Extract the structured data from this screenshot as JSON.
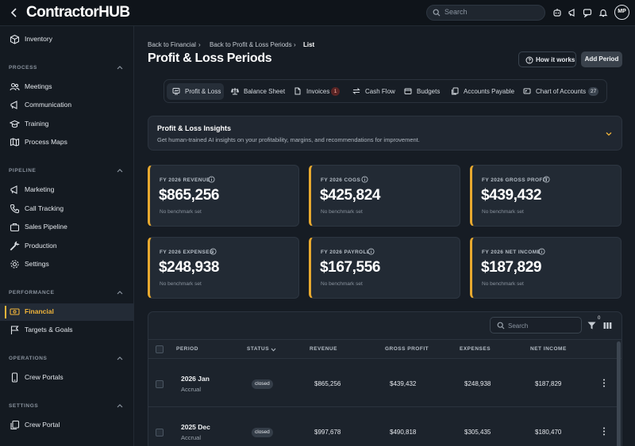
{
  "app": {
    "logo": "ContractorHUB"
  },
  "topbar": {
    "search_placeholder": "Search",
    "avatar_initials": "MP"
  },
  "sidebar": {
    "top_item": "Inventory",
    "sections": [
      {
        "title": "PROCESS",
        "items": [
          "Meetings",
          "Communication",
          "Training",
          "Process Maps"
        ]
      },
      {
        "title": "PIPELINE",
        "items": [
          "Marketing",
          "Call Tracking",
          "Sales Pipeline",
          "Production",
          "Settings"
        ]
      },
      {
        "title": "PERFORMANCE",
        "items": [
          "Financial",
          "Targets & Goals"
        ]
      },
      {
        "title": "OPERATIONS",
        "items": [
          "Crew Portals"
        ]
      },
      {
        "title": "SETTINGS",
        "items": [
          "Crew Portal"
        ]
      }
    ],
    "active_item": "Financial",
    "accent": "#f0b43a"
  },
  "breadcrumb": [
    "Back to Financial",
    "Back to Profit & Loss Periods",
    "List"
  ],
  "page": {
    "title": "Profit & Loss Periods",
    "how_label": "How it works",
    "add_label": "Add Period"
  },
  "tabs": [
    {
      "label": "Profit & Loss",
      "active": true
    },
    {
      "label": "Balance Sheet"
    },
    {
      "label": "Invoices",
      "badge": "1"
    },
    {
      "label": "Cash Flow"
    },
    {
      "label": "Budgets"
    },
    {
      "label": "Accounts Payable"
    },
    {
      "label": "Chart of Accounts",
      "badge": "27"
    }
  ],
  "insights": {
    "title": "Profit & Loss Insights",
    "subtitle": "Get human-trained AI insights on your profitability, margins, and recommendations for improvement."
  },
  "kpis": [
    {
      "label": "FY 2026 REVENUE",
      "value": "$865,256",
      "note": "No benchmark set"
    },
    {
      "label": "FY 2026 COGS",
      "value": "$425,824",
      "note": "No benchmark set"
    },
    {
      "label": "FY 2026 GROSS PROFIT",
      "value": "$439,432",
      "note": "No benchmark set"
    },
    {
      "label": "FY 2026 EXPENSES",
      "value": "$248,938",
      "note": "No benchmark set"
    },
    {
      "label": "FY 2026 PAYROLL",
      "value": "$167,556",
      "note": "No benchmark set"
    },
    {
      "label": "FY 2026 NET INCOME",
      "value": "$187,829",
      "note": "No benchmark set"
    }
  ],
  "table": {
    "search_placeholder": "Search",
    "filter_count": "0",
    "columns": [
      "PERIOD",
      "STATUS",
      "REVENUE",
      "GROSS PROFIT",
      "EXPENSES",
      "NET INCOME"
    ],
    "rows": [
      {
        "period": "2026 Jan",
        "type": "Accrual",
        "status": "closed",
        "revenue": "$865,256",
        "gross_profit": "$439,432",
        "expenses": "$248,938",
        "net_income": "$187,829"
      },
      {
        "period": "2025 Dec",
        "type": "Accrual",
        "status": "closed",
        "revenue": "$997,678",
        "gross_profit": "$490,818",
        "expenses": "$305,435",
        "net_income": "$180,470"
      }
    ]
  }
}
